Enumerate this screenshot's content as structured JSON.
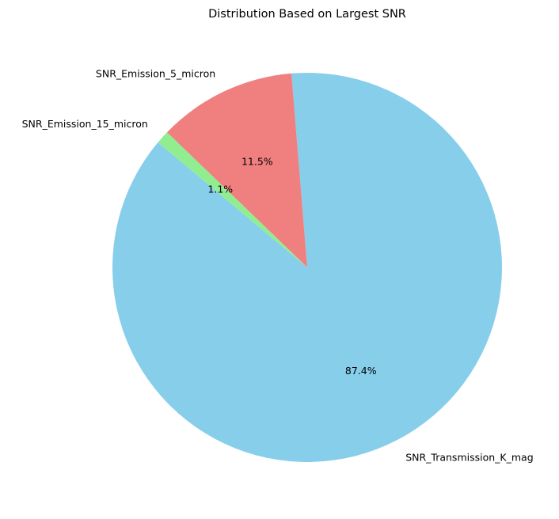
{
  "chart_data": {
    "type": "pie",
    "title": "Distribution Based on Largest SNR",
    "start_angle_deg": 140,
    "direction": "counterclockwise",
    "slices": [
      {
        "label": "SNR_Transmission_K_mag",
        "value": 87.4,
        "pct_label": "87.4%",
        "color": "#87CEEB"
      },
      {
        "label": "SNR_Emission_5_micron",
        "value": 11.5,
        "pct_label": "11.5%",
        "color": "#F08080"
      },
      {
        "label": "SNR_Emission_15_micron",
        "value": 1.1,
        "pct_label": "1.1%",
        "color": "#90EE90"
      }
    ],
    "legend": "none"
  }
}
